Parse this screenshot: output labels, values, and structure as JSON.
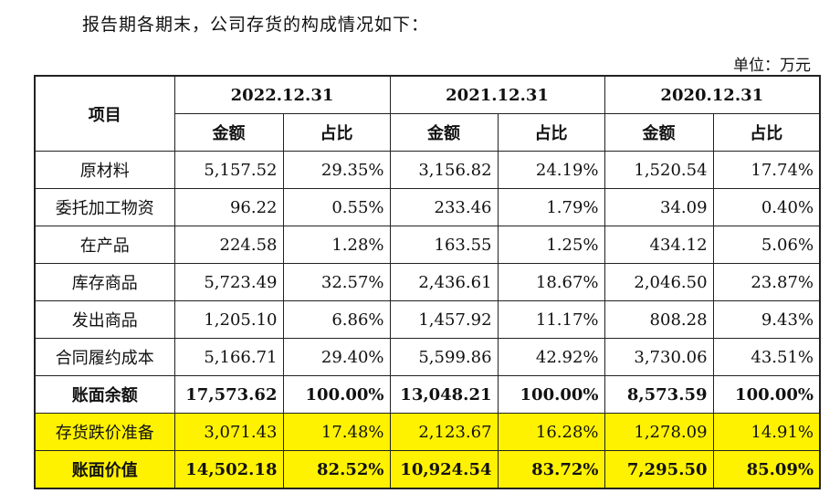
{
  "intro": "报告期各期末，公司存货的构成情况如下：",
  "unit": "单位：万元",
  "header": {
    "item": "项目",
    "periods": [
      "2022.12.31",
      "2021.12.31",
      "2020.12.31"
    ],
    "amount": "金额",
    "ratio": "占比"
  },
  "rows": [
    {
      "name": "原材料",
      "v": [
        "5,157.52",
        "29.35%",
        "3,156.82",
        "24.19%",
        "1,520.54",
        "17.74%"
      ]
    },
    {
      "name": "委托加工物资",
      "v": [
        "96.22",
        "0.55%",
        "233.46",
        "1.79%",
        "34.09",
        "0.40%"
      ]
    },
    {
      "name": "在产品",
      "v": [
        "224.58",
        "1.28%",
        "163.55",
        "1.25%",
        "434.12",
        "5.06%"
      ]
    },
    {
      "name": "库存商品",
      "v": [
        "5,723.49",
        "32.57%",
        "2,436.61",
        "18.67%",
        "2,046.50",
        "23.87%"
      ]
    },
    {
      "name": "发出商品",
      "v": [
        "1,205.10",
        "6.86%",
        "1,457.92",
        "11.17%",
        "808.28",
        "9.43%"
      ]
    },
    {
      "name": "合同履约成本",
      "v": [
        "5,166.71",
        "29.40%",
        "5,599.86",
        "42.92%",
        "3,730.06",
        "43.51%"
      ]
    },
    {
      "name": "账面余额",
      "v": [
        "17,573.62",
        "100.00%",
        "13,048.21",
        "100.00%",
        "8,573.59",
        "100.00%"
      ]
    },
    {
      "name": "存货跌价准备",
      "v": [
        "3,071.43",
        "17.48%",
        "2,123.67",
        "16.28%",
        "1,278.09",
        "14.91%"
      ]
    },
    {
      "name": "账面价值",
      "v": [
        "14,502.18",
        "82.52%",
        "10,924.54",
        "83.72%",
        "7,295.50",
        "85.09%"
      ]
    }
  ],
  "colors": {
    "highlight": "#fff200"
  }
}
